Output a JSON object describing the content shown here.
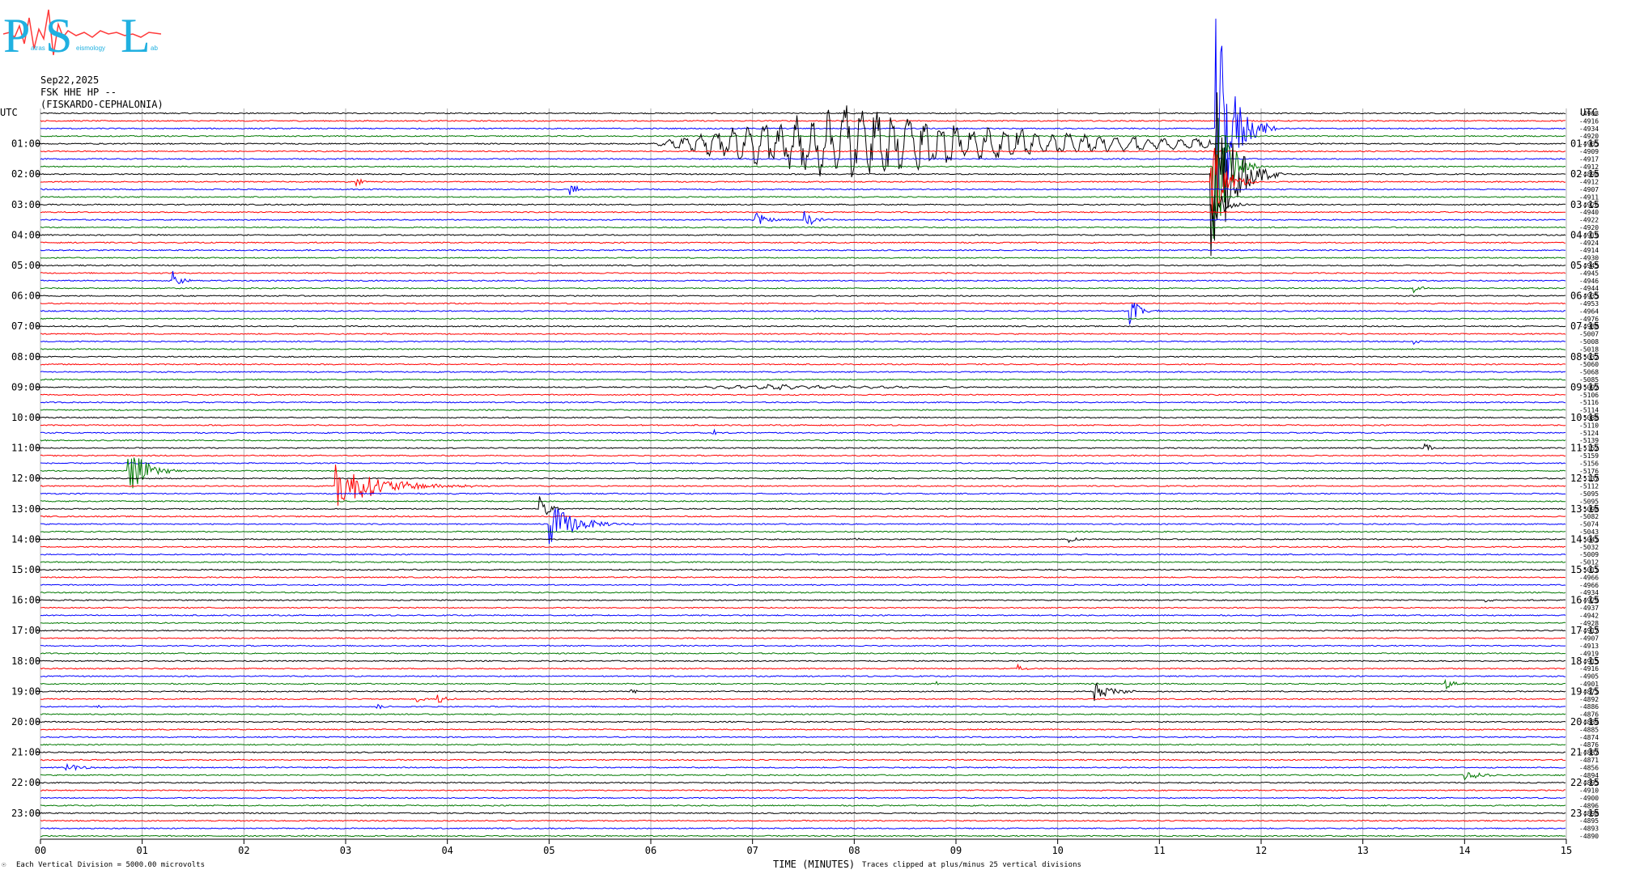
{
  "logo": {
    "letters": [
      "P",
      "S",
      "L"
    ],
    "sub_words": [
      "atras",
      "eismology",
      "ab"
    ]
  },
  "header": {
    "date": "Sep22,2025",
    "station": "FSK HHE HP --",
    "location": "(FISKARDO-CEPHALONIA)"
  },
  "footer": {
    "scale": "Each Vertical Division = 5000.00 microvolts",
    "clip": "Traces clipped at plus/minus 25 vertical divisions",
    "mark": "☉"
  },
  "colors": {
    "trace_cycle": [
      "#000000",
      "#ff0000",
      "#0000ff",
      "#007800"
    ],
    "grid": "#b0b0b0"
  },
  "chart_data": {
    "type": "line",
    "subtype": "helicorder",
    "xlabel": "TIME (MINUTES)",
    "x_ticks": [
      "00",
      "01",
      "02",
      "03",
      "04",
      "05",
      "06",
      "07",
      "08",
      "09",
      "10",
      "11",
      "12",
      "13",
      "14",
      "15"
    ],
    "xlim": [
      0,
      15
    ],
    "utc_label": "UTC",
    "trace_minutes": 15,
    "traces_count": 96,
    "left_labels": [
      "01:00",
      "02:00",
      "03:00",
      "04:00",
      "05:00",
      "06:00",
      "07:00",
      "08:00",
      "09:00",
      "10:00",
      "11:00",
      "12:00",
      "13:00",
      "14:00",
      "15:00",
      "16:00",
      "17:00",
      "18:00",
      "19:00",
      "20:00",
      "21:00",
      "22:00",
      "23:00"
    ],
    "right_labels": [
      "01:15",
      "02:15",
      "03:15",
      "04:15",
      "05:15",
      "06:15",
      "07:15",
      "08:15",
      "09:15",
      "10:15",
      "11:15",
      "12:15",
      "13:15",
      "14:15",
      "15:15",
      "16:15",
      "17:15",
      "18:15",
      "19:15",
      "20:15",
      "21:15",
      "22:15",
      "23:15"
    ],
    "offsets": [
      "-4908",
      "-4916",
      "-4934",
      "-4920",
      "-4905",
      "-4909",
      "-4917",
      "-4912",
      "-4898",
      "-4912",
      "-4907",
      "-4911",
      "-4926",
      "-4940",
      "-4922",
      "-4920",
      "-4919",
      "-4924",
      "-4914",
      "-4930",
      "-4945",
      "-4945",
      "-4946",
      "-4944",
      "-4935",
      "-4953",
      "-4964",
      "-4976",
      "-4988",
      "-5007",
      "-5008",
      "-5018",
      "-5032",
      "-5060",
      "-5068",
      "-5085",
      "-5092",
      "-5106",
      "-5116",
      "-5114",
      "-5088",
      "-5110",
      "-5124",
      "-5139",
      "-5152",
      "-5159",
      "-5156",
      "-5176",
      "-5137",
      "-5112",
      "-5095",
      "-5095",
      "-5098",
      "-5082",
      "-5074",
      "-5043",
      "-5041",
      "-5032",
      "-5009",
      "-5012",
      "-5011",
      "-4966",
      "-4966",
      "-4934",
      "-4929",
      "-4937",
      "-4942",
      "-4928",
      "-4917",
      "-4907",
      "-4913",
      "-4919",
      "-4915",
      "-4916",
      "-4905",
      "-4901",
      "-4871",
      "-4892",
      "-4886",
      "-4876",
      "-4889",
      "-4885",
      "-4874",
      "-4876",
      "-4887",
      "-4871",
      "-4856",
      "-4894",
      "-4895",
      "-4910",
      "-4900",
      "-4896",
      "-4898",
      "-4895",
      "-4893",
      "-4890"
    ],
    "events": [
      {
        "trace": 4,
        "minute": 6.0,
        "amp": 45,
        "dur": 5.5,
        "type": "teleseism"
      },
      {
        "trace": 2,
        "minute": 11.55,
        "amp": 160,
        "dur": 0.6,
        "type": "local"
      },
      {
        "trace": 7,
        "minute": 11.52,
        "amp": 120,
        "dur": 0.5,
        "type": "local"
      },
      {
        "trace": 8,
        "minute": 11.5,
        "amp": 150,
        "dur": 0.7,
        "type": "local"
      },
      {
        "trace": 9,
        "minute": 11.5,
        "amp": 60,
        "dur": 0.5,
        "type": "local"
      },
      {
        "trace": 12,
        "minute": 11.5,
        "amp": 40,
        "dur": 0.4,
        "type": "local"
      },
      {
        "trace": 9,
        "minute": 3.1,
        "amp": 5,
        "dur": 0.3,
        "type": "local"
      },
      {
        "trace": 10,
        "minute": 5.2,
        "amp": 8,
        "dur": 0.4,
        "type": "local"
      },
      {
        "trace": 14,
        "minute": 7.0,
        "amp": 14,
        "dur": 0.4,
        "type": "local"
      },
      {
        "trace": 14,
        "minute": 7.5,
        "amp": 12,
        "dur": 0.4,
        "type": "local"
      },
      {
        "trace": 22,
        "minute": 1.3,
        "amp": 12,
        "dur": 0.3,
        "type": "local"
      },
      {
        "trace": 23,
        "minute": 13.5,
        "amp": 6,
        "dur": 0.3,
        "type": "local"
      },
      {
        "trace": 26,
        "minute": 10.7,
        "amp": 18,
        "dur": 0.4,
        "type": "local"
      },
      {
        "trace": 30,
        "minute": 13.5,
        "amp": 4,
        "dur": 0.2,
        "type": "local"
      },
      {
        "trace": 36,
        "minute": 6.2,
        "amp": 3,
        "dur": 3.0,
        "type": "teleseism"
      },
      {
        "trace": 42,
        "minute": 6.6,
        "amp": 6,
        "dur": 0.2,
        "type": "local"
      },
      {
        "trace": 44,
        "minute": 13.6,
        "amp": 7,
        "dur": 0.3,
        "type": "local"
      },
      {
        "trace": 47,
        "minute": 0.85,
        "amp": 35,
        "dur": 0.6,
        "type": "local"
      },
      {
        "trace": 49,
        "minute": 2.9,
        "amp": 28,
        "dur": 1.6,
        "type": "local"
      },
      {
        "trace": 52,
        "minute": 4.9,
        "amp": 20,
        "dur": 0.3,
        "type": "local"
      },
      {
        "trace": 54,
        "minute": 5.0,
        "amp": 28,
        "dur": 0.9,
        "type": "local"
      },
      {
        "trace": 56,
        "minute": 8.0,
        "amp": 3,
        "dur": 0.2,
        "type": "local"
      },
      {
        "trace": 56,
        "minute": 10.1,
        "amp": 5,
        "dur": 0.3,
        "type": "local"
      },
      {
        "trace": 64,
        "minute": 14.2,
        "amp": 3,
        "dur": 0.2,
        "type": "local"
      },
      {
        "trace": 73,
        "minute": 9.6,
        "amp": 8,
        "dur": 0.2,
        "type": "local"
      },
      {
        "trace": 75,
        "minute": 8.8,
        "amp": 4,
        "dur": 0.2,
        "type": "local"
      },
      {
        "trace": 75,
        "minute": 13.8,
        "amp": 7,
        "dur": 0.4,
        "type": "local"
      },
      {
        "trace": 76,
        "minute": 5.8,
        "amp": 4,
        "dur": 0.2,
        "type": "local"
      },
      {
        "trace": 76,
        "minute": 10.35,
        "amp": 14,
        "dur": 0.6,
        "type": "local"
      },
      {
        "trace": 77,
        "minute": 3.7,
        "amp": 5,
        "dur": 0.2,
        "type": "local"
      },
      {
        "trace": 77,
        "minute": 3.9,
        "amp": 8,
        "dur": 0.3,
        "type": "local"
      },
      {
        "trace": 78,
        "minute": 0.55,
        "amp": 5,
        "dur": 0.2,
        "type": "local"
      },
      {
        "trace": 78,
        "minute": 3.3,
        "amp": 5,
        "dur": 0.2,
        "type": "local"
      },
      {
        "trace": 86,
        "minute": 0.25,
        "amp": 8,
        "dur": 0.4,
        "type": "local"
      },
      {
        "trace": 87,
        "minute": 14.0,
        "amp": 7,
        "dur": 0.5,
        "type": "local"
      }
    ]
  }
}
